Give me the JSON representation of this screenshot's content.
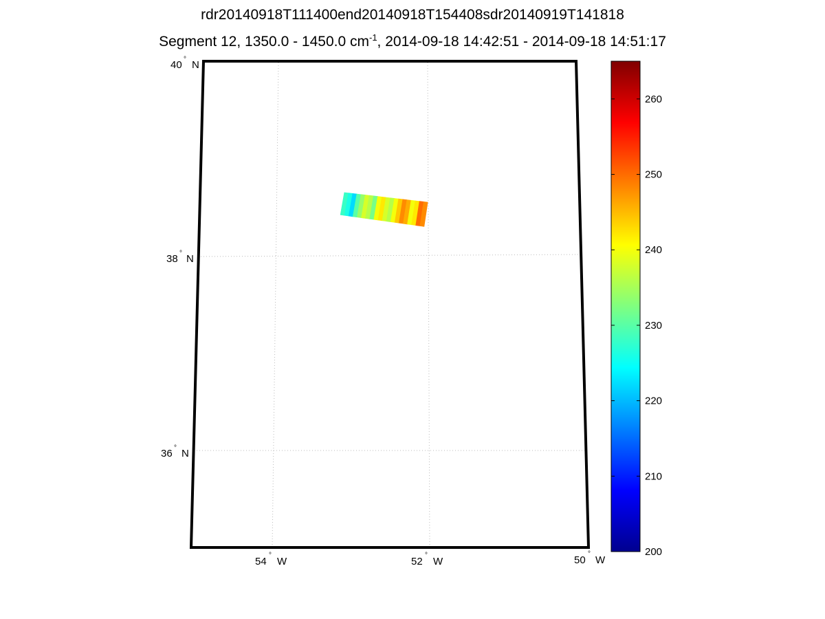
{
  "title_line1": "rdr20140918T111400end20140918T154408sdr20140919T141818",
  "title_line2_pre": "Segment 12, 1350.0 - 1450.0 cm",
  "title_line2_sup": "-1",
  "title_line2_post": ", 2014-09-18 14:42:51 - 2014-09-18 14:51:17",
  "map": {
    "lat_range": [
      35,
      40
    ],
    "lon_range": [
      -55,
      -50
    ],
    "lat_labels": [
      {
        "deg": "40",
        "hemi": "N"
      },
      {
        "deg": "38",
        "hemi": "N"
      },
      {
        "deg": "36",
        "hemi": "N"
      }
    ],
    "lon_labels": [
      {
        "deg": "54",
        "hemi": "W"
      },
      {
        "deg": "52",
        "hemi": "W"
      },
      {
        "deg": "50",
        "hemi": "W"
      }
    ],
    "grid": "dotted"
  },
  "colorbar": {
    "colormap": "jet",
    "min": 200,
    "max": 265,
    "tick_labels": [
      "200",
      "210",
      "220",
      "230",
      "240",
      "250",
      "260"
    ],
    "tick_values": [
      200,
      210,
      220,
      230,
      240,
      250,
      260
    ]
  },
  "swath": {
    "corners_lon_lat": [
      [
        -53.1,
        38.65
      ],
      [
        -52.0,
        38.55
      ],
      [
        -52.05,
        38.3
      ],
      [
        -53.15,
        38.42
      ]
    ],
    "columns": [
      228,
      226,
      222,
      230,
      234,
      238,
      236,
      232,
      240,
      242,
      238,
      236,
      240,
      244,
      248,
      246,
      240,
      242,
      250,
      248
    ]
  }
}
